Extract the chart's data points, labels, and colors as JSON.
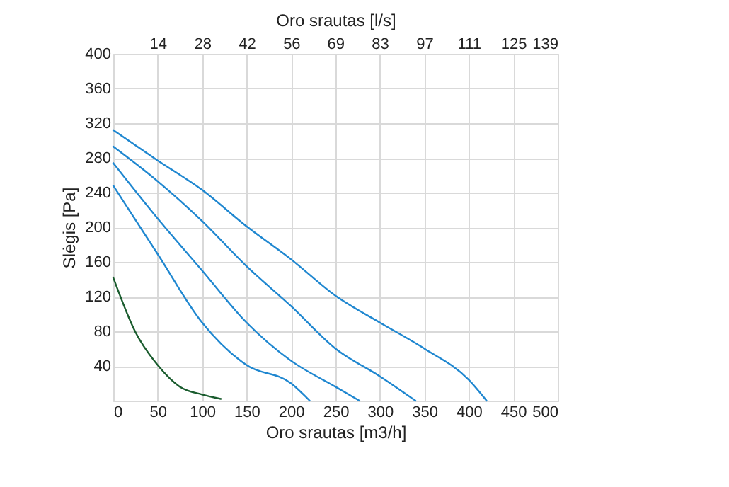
{
  "chart_data": {
    "type": "line",
    "xlabel": "Oro srautas [m3/h]",
    "ylabel": "Slėgis [Pa]",
    "x2label": "Oro srautas [l/s]",
    "xlim": [
      0,
      500
    ],
    "xticks": [
      0,
      50,
      100,
      150,
      200,
      250,
      300,
      350,
      400,
      450,
      500
    ],
    "ylim": [
      0,
      400
    ],
    "yticks": [
      {
        "value": 0,
        "label": null
      },
      40,
      80,
      120,
      160,
      200,
      240,
      280,
      320,
      360,
      400
    ],
    "x2lim": [
      0,
      138.9
    ],
    "x2ticks": [
      {
        "value": 13.9,
        "label": "14"
      },
      {
        "value": 27.8,
        "label": "28"
      },
      {
        "value": 41.7,
        "label": "42"
      },
      {
        "value": 55.6,
        "label": "56"
      },
      {
        "value": 69.4,
        "label": "69"
      },
      {
        "value": 83.3,
        "label": "83"
      },
      {
        "value": 97.2,
        "label": "97"
      },
      {
        "value": 111.1,
        "label": "111"
      },
      {
        "value": 125,
        "label": "125"
      },
      {
        "value": 138.9,
        "label": "139"
      }
    ],
    "grid": true,
    "legend": false,
    "marker": "none",
    "line_style": "solid",
    "series": [
      {
        "color": "#1f87d0",
        "x": [
          0,
          50,
          100,
          150,
          200,
          250,
          300,
          350,
          400,
          420
        ],
        "values": [
          312,
          277,
          243,
          201,
          163,
          121,
          90,
          60,
          24,
          0
        ]
      },
      {
        "color": "#1f87d0",
        "x": [
          0,
          50,
          100,
          150,
          200,
          250,
          300,
          340
        ],
        "values": [
          293,
          253,
          207,
          155,
          109,
          60,
          28,
          0
        ]
      },
      {
        "color": "#1f87d0",
        "x": [
          0,
          50,
          100,
          150,
          200,
          250,
          277
        ],
        "values": [
          274,
          210,
          150,
          90,
          46,
          16,
          0
        ]
      },
      {
        "color": "#1f87d0",
        "x": [
          0,
          50,
          100,
          150,
          200,
          221
        ],
        "values": [
          248,
          169,
          90,
          41,
          20,
          0
        ]
      },
      {
        "color": "#1a5c2e",
        "x": [
          0,
          25,
          50,
          75,
          100,
          121
        ],
        "values": [
          142,
          79,
          41,
          16,
          7,
          2
        ]
      }
    ]
  }
}
